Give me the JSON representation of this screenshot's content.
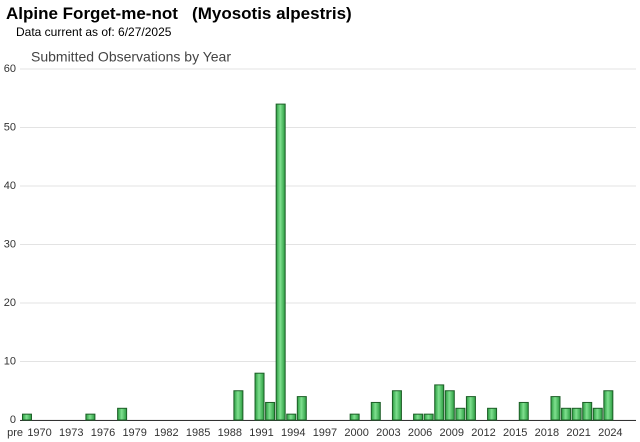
{
  "header": {
    "title": "Alpine Forget-me-not   (Myosotis alpestris)",
    "subtitle": "Data current as of: 6/27/2025"
  },
  "chart_data": {
    "type": "bar",
    "title": "Submitted Observations by Year",
    "color": "#3cb853",
    "categories": [
      "pre",
      "1970",
      null,
      null,
      "1973",
      null,
      null,
      "1976",
      null,
      null,
      "1979",
      null,
      null,
      "1982",
      null,
      null,
      "1985",
      null,
      null,
      "1988",
      null,
      null,
      "1991",
      null,
      null,
      "1994",
      null,
      null,
      "1997",
      null,
      null,
      "2000",
      null,
      null,
      "2003",
      null,
      null,
      "2006",
      null,
      null,
      "2009",
      null,
      null,
      "2012",
      null,
      null,
      "2015",
      null,
      null,
      "2018",
      null,
      null,
      "2021",
      null,
      null,
      "2024",
      null
    ],
    "values": [
      1,
      0,
      0,
      0,
      0,
      0,
      1,
      0,
      0,
      2,
      0,
      0,
      0,
      0,
      0,
      0,
      0,
      0,
      0,
      0,
      5,
      0,
      8,
      3,
      54,
      1,
      4,
      0,
      0,
      0,
      0,
      1,
      0,
      3,
      0,
      5,
      0,
      1,
      1,
      6,
      5,
      2,
      4,
      0,
      2,
      0,
      0,
      3,
      0,
      0,
      4,
      2,
      2,
      3,
      2,
      5,
      0
    ],
    "ylim": [
      0,
      60
    ],
    "yticks": [
      0,
      10,
      20,
      30,
      40,
      50,
      60
    ],
    "grid": true
  }
}
